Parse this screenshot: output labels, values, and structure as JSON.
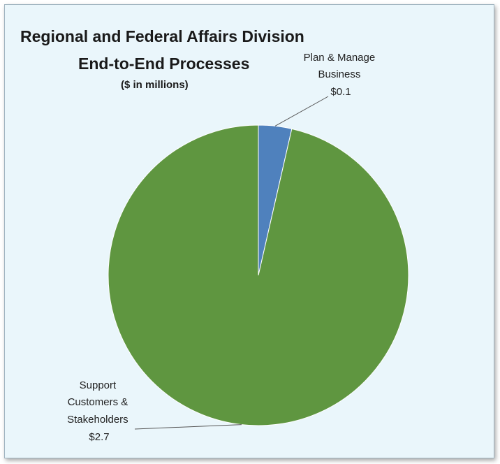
{
  "chart_data": {
    "type": "pie",
    "title": "Regional and Federal Affairs Division",
    "title_line2": "End-to-End Processes",
    "subtitle": "($ in millions)",
    "slices": [
      {
        "label_lines": [
          "Plan & Manage",
          "Business"
        ],
        "value_label": "$0.1",
        "value": 0.1,
        "color": "#4f81bd"
      },
      {
        "label_lines": [
          "Support",
          "Customers &",
          "Stakeholders"
        ],
        "value_label": "$2.7",
        "value": 2.7,
        "color": "#5f9640"
      }
    ],
    "start_angle_deg": 0,
    "direction": "clockwise"
  },
  "colors": {
    "background": "#eaf6fb",
    "border": "#9fb3bf"
  }
}
